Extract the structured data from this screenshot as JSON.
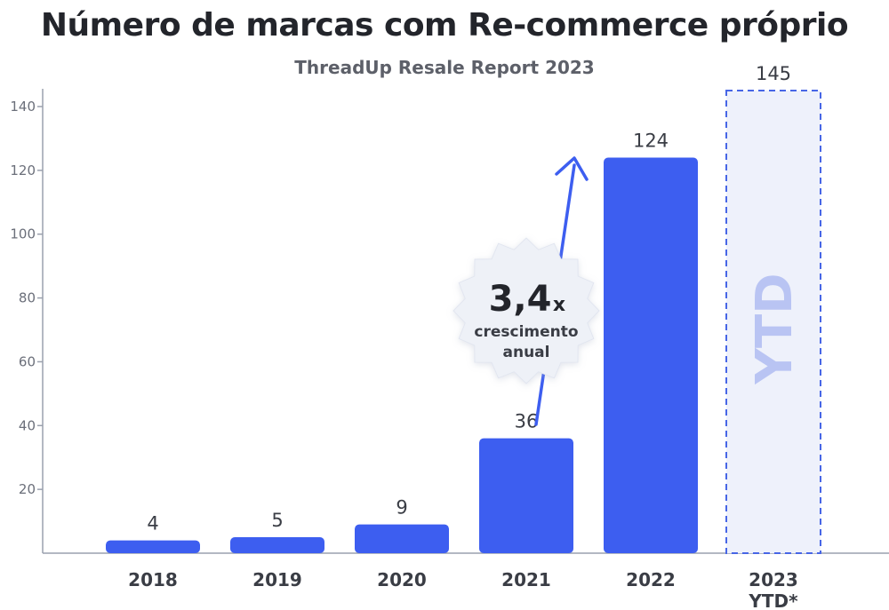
{
  "chart_data": {
    "type": "bar",
    "title": "Número de marcas com Re-commerce próprio",
    "subtitle": "ThreadUp Resale Report 2023",
    "categories": [
      "2018",
      "2019",
      "2020",
      "2021",
      "2022",
      "2023\nYTD*"
    ],
    "values": [
      4,
      5,
      9,
      36,
      124,
      145
    ],
    "value_labels": [
      "4",
      "5",
      "9",
      "36",
      "124",
      "145"
    ],
    "ylim": [
      0,
      145
    ],
    "yticks": [
      20,
      40,
      60,
      80,
      100,
      120,
      140
    ],
    "grid": false,
    "projected_index": 5,
    "projected_watermark": "YTD",
    "annotation": {
      "value": "3,4",
      "suffix": "x",
      "line1": "crescimento",
      "line2": "anual"
    },
    "colors": {
      "bar": "#3d5ef0",
      "projected_fill": "#eef1fb",
      "projected_border": "#4766e6",
      "watermark": "#b9c4f3",
      "axis": "#9aa0ad",
      "arrow": "#3d5ef0",
      "badge": "#eef1f7"
    }
  }
}
